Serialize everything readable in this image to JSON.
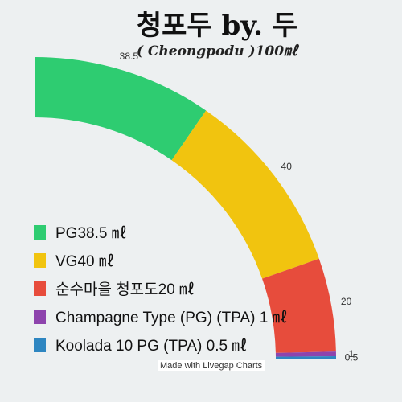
{
  "chart_data": {
    "type": "pie",
    "title": "청포두 by. 두",
    "subtitle": "( Cheongpodu )100㎖",
    "categories": [
      "PG",
      "VG",
      "순수마을 청포도",
      "Champagne Type (PG) (TPA)",
      "Koolada 10 PG (TPA)"
    ],
    "values": [
      38.5,
      40,
      20,
      1,
      0.5
    ],
    "data_labels": [
      "38.5",
      "40",
      "20",
      "1",
      "0.5"
    ],
    "legend": [
      "PG38.5 ㎖",
      "VG40 ㎖",
      "순수마을 청포도20 ㎖",
      "Champagne Type (PG) (TPA) 1 ㎖",
      "Koolada 10 PG (TPA) 0.5 ㎖"
    ],
    "colors": [
      "#2ecc71",
      "#f1c40f",
      "#e74c3c",
      "#8e44ad",
      "#2e86c1"
    ],
    "legend_position": "bottom-left"
  },
  "credit": "Made with Livegap Charts"
}
